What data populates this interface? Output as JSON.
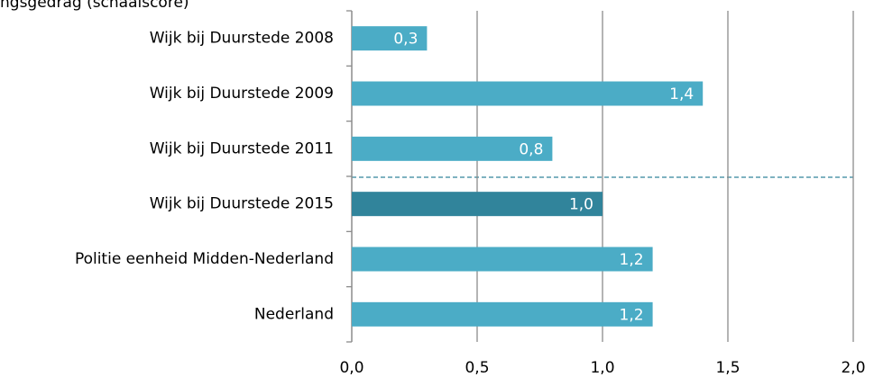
{
  "chart_data": {
    "type": "bar",
    "orientation": "horizontal",
    "title": "ngsgedrag (schaalscore)",
    "categories": [
      "Wijk bij Duurstede 2008",
      "Wijk bij Duurstede 2009",
      "Wijk bij Duurstede 2011",
      "Wijk bij Duurstede 2015",
      "Politie eenheid Midden-Nederland",
      "Nederland"
    ],
    "values": [
      0.3,
      1.4,
      0.8,
      1.0,
      1.2,
      1.2
    ],
    "value_labels": [
      "0,3",
      "1,4",
      "0,8",
      "1,0",
      "1,2",
      "1,2"
    ],
    "colors": [
      "#4bacc6",
      "#4bacc6",
      "#4bacc6",
      "#31849b",
      "#4bacc6",
      "#4bacc6"
    ],
    "xlim": [
      0,
      2
    ],
    "xticks": [
      {
        "value": 0,
        "label": "0,0"
      },
      {
        "value": 0.5,
        "label": "0,5"
      },
      {
        "value": 1,
        "label": "1,0"
      },
      {
        "value": 1.5,
        "label": "1,5"
      },
      {
        "value": 2,
        "label": "2,0"
      }
    ],
    "grid": true
  }
}
